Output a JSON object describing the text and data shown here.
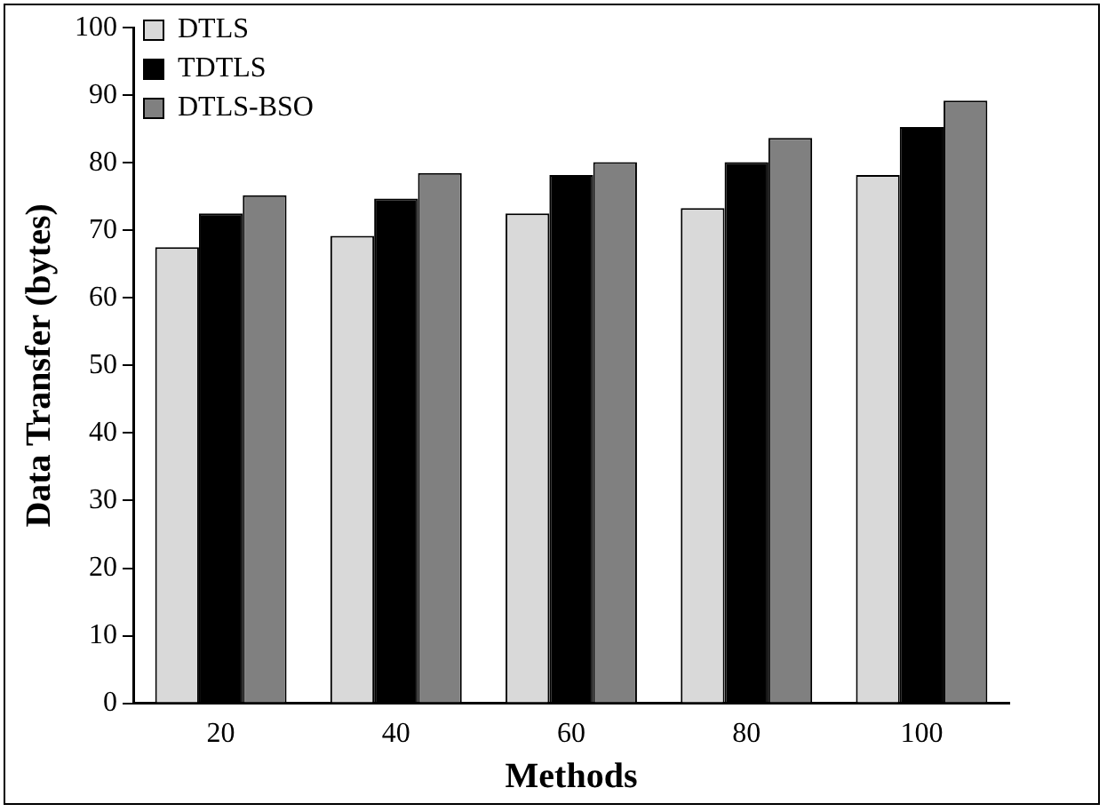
{
  "chart_data": {
    "type": "bar",
    "xlabel": "Methods",
    "ylabel": "Data Transfer (bytes)",
    "categories": [
      "20",
      "40",
      "60",
      "80",
      "100"
    ],
    "series": [
      {
        "name": "DTLS",
        "color": "#d9d9d9",
        "values": [
          67.5,
          69.2,
          72.5,
          73.3,
          78.2
        ]
      },
      {
        "name": "TDTLS",
        "color": "#000000",
        "values": [
          72.5,
          74.7,
          78.2,
          80.1,
          85.3
        ]
      },
      {
        "name": "DTLS-BSO",
        "color": "#808080",
        "values": [
          75.2,
          78.5,
          80.1,
          83.7,
          89.2
        ]
      }
    ],
    "ylim": [
      0,
      100
    ],
    "yticks": [
      0,
      10,
      20,
      30,
      40,
      50,
      60,
      70,
      80,
      90,
      100
    ],
    "grid": false,
    "legend": "top left"
  }
}
